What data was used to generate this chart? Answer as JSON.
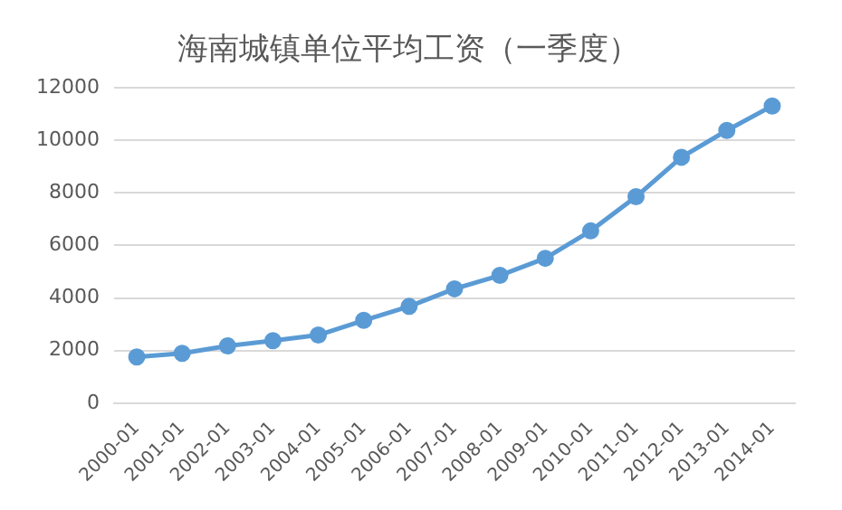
{
  "chart_data": {
    "type": "line",
    "title": "海南城镇单位平均工资（一季度）",
    "categories": [
      "2000-01",
      "2001-01",
      "2002-01",
      "2003-01",
      "2004-01",
      "2005-01",
      "2006-01",
      "2007-01",
      "2008-01",
      "2009-01",
      "2010-01",
      "2011-01",
      "2012-01",
      "2013-01",
      "2014-01"
    ],
    "series": [
      {
        "color": "#5b9bd5",
        "values": [
          1760,
          1900,
          2180,
          2380,
          2590,
          3150,
          3680,
          4350,
          4860,
          5510,
          6550,
          7850,
          9350,
          10370,
          11300
        ]
      }
    ],
    "ylim": [
      0,
      12000
    ],
    "yticks": [
      0,
      2000,
      4000,
      6000,
      8000,
      10000,
      12000
    ],
    "grid": "y",
    "legend": false,
    "marker": "circle",
    "line_style": "solid"
  }
}
